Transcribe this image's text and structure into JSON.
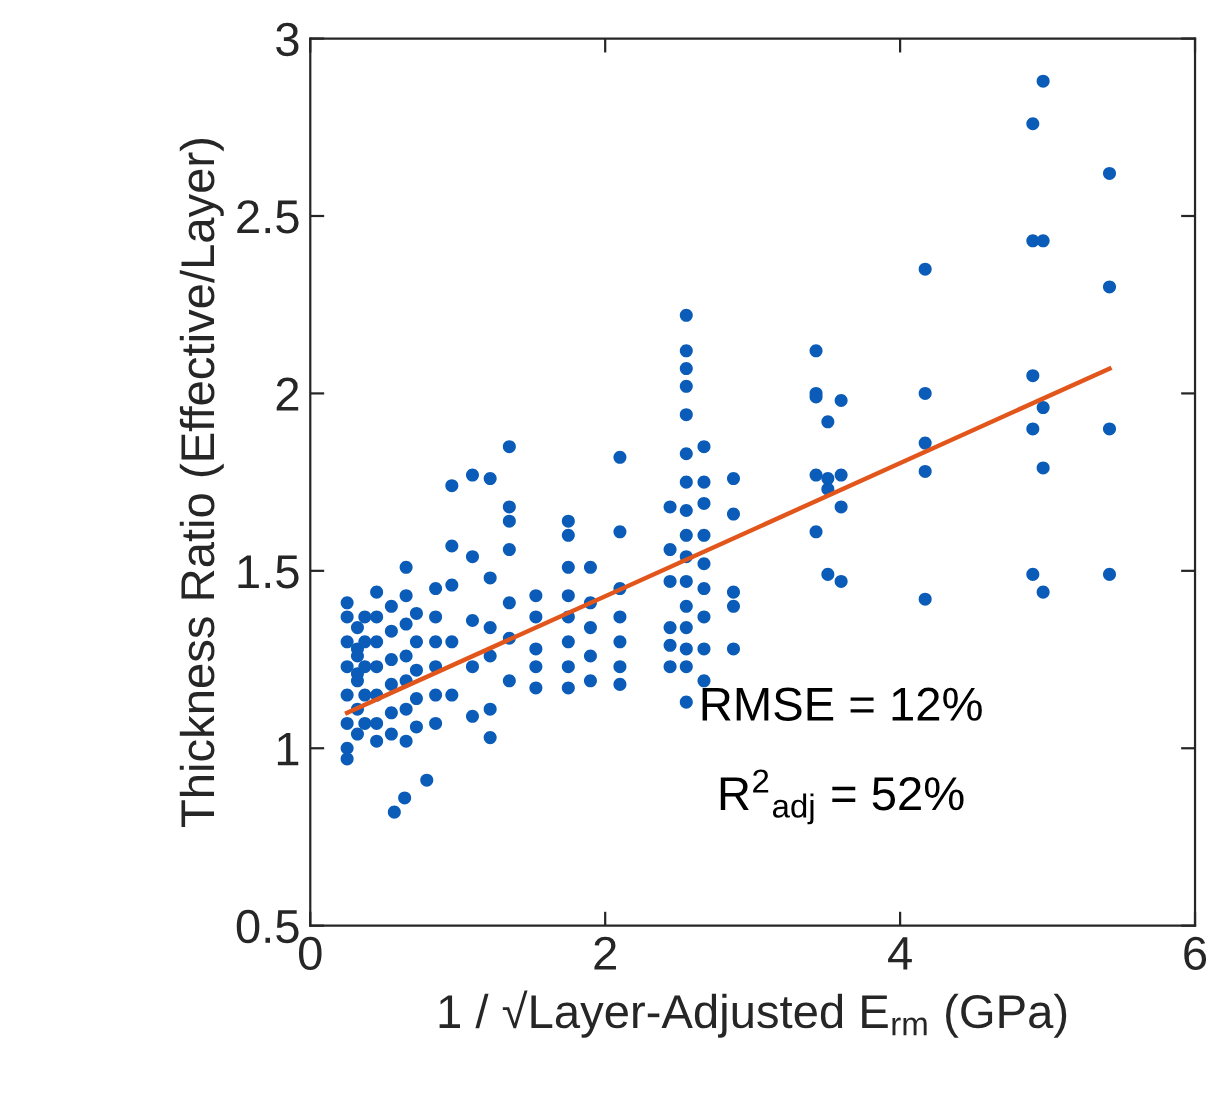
{
  "chart_data": {
    "type": "scatter",
    "xlabel": "1 / √Layer-Adjusted E$_{rm}$ (GPa)",
    "ylabel": "Thickness Ratio (Effective/Layer)",
    "annotations": [
      "RMSE = 12%",
      "R$^{2}$$_{adj}$ = 52%"
    ],
    "xlim": [
      0,
      6
    ],
    "ylim": [
      0.5,
      3
    ],
    "xticks": [
      0,
      2,
      4,
      6
    ],
    "yticks": [
      0.5,
      1,
      1.5,
      2,
      2.5,
      3
    ],
    "grid": false,
    "legend": false,
    "marker": "circle",
    "series": [
      {
        "color": "#0a5cb8",
        "x": [
          0.25,
          0.25,
          0.25,
          0.25,
          0.25,
          0.25,
          0.25,
          0.25,
          0.32,
          0.32,
          0.32,
          0.32,
          0.32,
          0.32,
          0.32,
          0.37,
          0.37,
          0.37,
          0.37,
          0.37,
          0.45,
          0.45,
          0.45,
          0.45,
          0.45,
          0.45,
          0.45,
          0.55,
          0.55,
          0.55,
          0.55,
          0.55,
          0.55,
          0.65,
          0.65,
          0.65,
          0.65,
          0.65,
          0.65,
          0.65,
          0.72,
          0.72,
          0.72,
          0.72,
          0.72,
          0.57,
          0.64,
          0.79,
          0.85,
          0.85,
          0.85,
          0.85,
          0.85,
          0.85,
          0.96,
          0.96,
          0.96,
          0.96,
          0.96,
          1.1,
          1.1,
          1.1,
          1.1,
          1.1,
          1.22,
          1.22,
          1.22,
          1.22,
          1.22,
          1.22,
          1.35,
          1.35,
          1.35,
          1.35,
          1.35,
          1.35,
          1.35,
          1.53,
          1.53,
          1.53,
          1.53,
          1.53,
          1.75,
          1.75,
          1.75,
          1.75,
          1.75,
          1.75,
          1.75,
          1.75,
          1.9,
          1.9,
          1.9,
          1.9,
          1.9,
          2.1,
          2.1,
          2.1,
          2.1,
          2.1,
          2.1,
          2.1,
          2.44,
          2.44,
          2.44,
          2.44,
          2.44,
          2.44,
          2.55,
          2.55,
          2.55,
          2.55,
          2.55,
          2.55,
          2.55,
          2.55,
          2.55,
          2.55,
          2.55,
          2.55,
          2.55,
          2.55,
          2.55,
          2.55,
          2.67,
          2.67,
          2.67,
          2.67,
          2.67,
          2.67,
          2.67,
          2.67,
          2.67,
          2.87,
          2.87,
          2.87,
          2.87,
          2.87,
          3.43,
          3.43,
          3.43,
          3.43,
          3.43,
          3.51,
          3.51,
          3.51,
          3.51,
          3.6,
          3.6,
          3.6,
          3.6,
          4.17,
          4.17,
          4.17,
          4.17,
          4.17,
          4.9,
          4.9,
          4.9,
          4.9,
          4.9,
          4.97,
          4.97,
          4.97,
          4.97,
          4.97,
          5.42,
          5.42,
          5.42,
          5.42
        ],
        "values": [
          1.41,
          1.37,
          1.3,
          1.23,
          1.15,
          1.07,
          1.0,
          0.97,
          1.34,
          1.26,
          1.19,
          1.11,
          1.04,
          1.28,
          1.21,
          1.37,
          1.3,
          1.23,
          1.15,
          1.07,
          1.44,
          1.37,
          1.3,
          1.23,
          1.15,
          1.07,
          1.02,
          1.4,
          1.33,
          1.25,
          1.18,
          1.1,
          1.04,
          1.51,
          1.43,
          1.35,
          1.26,
          1.19,
          1.11,
          1.02,
          1.38,
          1.3,
          1.22,
          1.14,
          1.06,
          0.82,
          0.86,
          0.91,
          1.45,
          1.37,
          1.3,
          1.23,
          1.15,
          1.07,
          1.74,
          1.57,
          1.46,
          1.3,
          1.15,
          1.77,
          1.54,
          1.23,
          1.09,
          1.36,
          1.76,
          1.48,
          1.34,
          1.26,
          1.11,
          1.03,
          1.85,
          1.68,
          1.64,
          1.56,
          1.41,
          1.19,
          1.31,
          1.43,
          1.37,
          1.28,
          1.23,
          1.17,
          1.64,
          1.6,
          1.51,
          1.43,
          1.37,
          1.3,
          1.23,
          1.17,
          1.51,
          1.41,
          1.34,
          1.26,
          1.19,
          1.82,
          1.61,
          1.45,
          1.37,
          1.3,
          1.23,
          1.18,
          1.68,
          1.56,
          1.47,
          1.34,
          1.29,
          1.23,
          2.22,
          2.12,
          2.07,
          2.02,
          1.94,
          1.83,
          1.75,
          1.67,
          1.6,
          1.54,
          1.47,
          1.4,
          1.34,
          1.28,
          1.23,
          1.13,
          1.85,
          1.75,
          1.69,
          1.6,
          1.52,
          1.45,
          1.37,
          1.28,
          1.19,
          1.76,
          1.66,
          1.44,
          1.4,
          1.28,
          2.12,
          2.0,
          1.77,
          1.61,
          1.99,
          1.92,
          1.76,
          1.73,
          1.49,
          1.98,
          1.77,
          1.68,
          1.47,
          2.35,
          2.0,
          1.86,
          1.78,
          1.42,
          2.76,
          2.43,
          2.05,
          1.9,
          1.49,
          2.88,
          2.43,
          1.96,
          1.79,
          1.44,
          2.62,
          2.3,
          1.9,
          1.49
        ]
      },
      {
        "type": "line",
        "color": "#e2561c",
        "marker": "none",
        "line_style": "solid",
        "x": [
          0.25,
          5.42
        ],
        "values": [
          1.1,
          2.07
        ]
      }
    ]
  }
}
